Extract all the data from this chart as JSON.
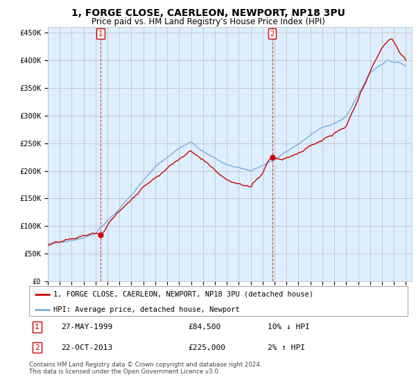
{
  "title": "1, FORGE CLOSE, CAERLEON, NEWPORT, NP18 3PU",
  "subtitle": "Price paid vs. HM Land Registry's House Price Index (HPI)",
  "ylim": [
    0,
    460000
  ],
  "yticks": [
    0,
    50000,
    100000,
    150000,
    200000,
    250000,
    300000,
    350000,
    400000,
    450000
  ],
  "ytick_labels": [
    "£0",
    "£50K",
    "£100K",
    "£150K",
    "£200K",
    "£250K",
    "£300K",
    "£350K",
    "£400K",
    "£450K"
  ],
  "hpi_color": "#7aaddc",
  "price_color": "#cc0000",
  "chart_bg": "#ddeeff",
  "sale1_year": 1999.41,
  "sale1_price": 84500,
  "sale1_label": "1",
  "sale1_date": "27-MAY-1999",
  "sale1_amount": "£84,500",
  "sale1_hpi": "10% ↓ HPI",
  "sale2_year": 2013.8,
  "sale2_price": 225000,
  "sale2_label": "2",
  "sale2_date": "22-OCT-2013",
  "sale2_amount": "£225,000",
  "sale2_hpi": "2% ↑ HPI",
  "legend_line1": "1, FORGE CLOSE, CAERLEON, NEWPORT, NP18 3PU (detached house)",
  "legend_line2": "HPI: Average price, detached house, Newport",
  "footnote": "Contains HM Land Registry data © Crown copyright and database right 2024.\nThis data is licensed under the Open Government Licence v3.0.",
  "background_color": "#ffffff",
  "grid_color": "#bbbbbb"
}
